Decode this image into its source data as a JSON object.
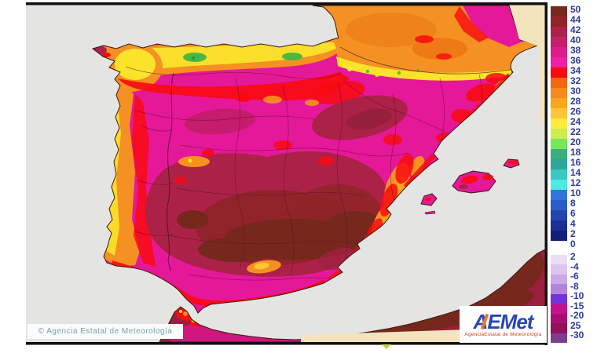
{
  "page": {
    "background": "#ffffff"
  },
  "map": {
    "sea_color": "#e4e4e2",
    "no_data_color": "#f3e4be",
    "frame_border_color": "#101010",
    "land_base_color": "#e5189a",
    "coastline_color": "#3a1a10"
  },
  "branding": {
    "copyright": "© Agencia Estatal de Meteorología",
    "logo_wordmark": "AEMet",
    "logo_caption": "AgenciaEstatal de Meteorología"
  },
  "legend": {
    "label_color": "#2b3a9c",
    "upper": {
      "labels": [
        "50",
        "44",
        "42",
        "40",
        "38",
        "36",
        "34",
        "32",
        "30",
        "28",
        "26",
        "24",
        "22",
        "20",
        "18",
        "16",
        "14",
        "12",
        "10",
        "8",
        "6",
        "4",
        "2",
        "0"
      ],
      "cell_colors": [
        "#772a1b",
        "#90242a",
        "#ac2148",
        "#c41f6a",
        "#da1d88",
        "#f01fa6",
        "#f90a0f",
        "#f4660f",
        "#f78a1c",
        "#f9a61f",
        "#fbc736",
        "#fcec3f",
        "#cdec4e",
        "#76e85c",
        "#3baf7e",
        "#2ea69c",
        "#37c9c2",
        "#4eeae2",
        "#3176d8",
        "#2a5cc7",
        "#2345ae",
        "#1b2f96",
        "#131e7c"
      ]
    },
    "lower": {
      "labels": [
        "2",
        "-4",
        "-6",
        "-8",
        "-10",
        "-15",
        "-20",
        "25",
        "-30"
      ],
      "cell_colors": [
        "#ebddf5",
        "#dcc5ee",
        "#cba9e6",
        "#b285dc",
        "#7134d8",
        "#c3138d",
        "#aa0e72",
        "#92115d",
        "#7d3d8f"
      ]
    }
  }
}
